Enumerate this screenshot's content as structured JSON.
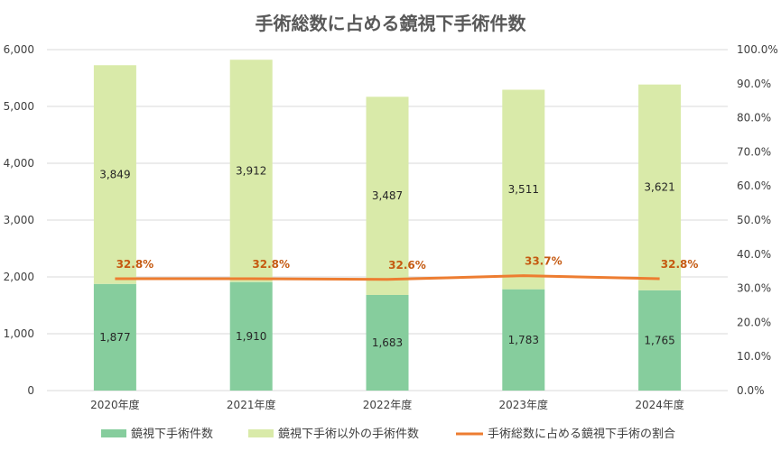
{
  "chart_data": {
    "type": "bar",
    "title": "手術総数に占める鏡視下手術件数",
    "categories": [
      "2020年度",
      "2021年度",
      "2022年度",
      "2023年度",
      "2024年度"
    ],
    "series": [
      {
        "name": "鏡視下手術件数",
        "kind": "stacked-bar",
        "axis": "left",
        "color": "#86cd9d",
        "values": [
          1877,
          1910,
          1683,
          1783,
          1765
        ],
        "labels": [
          "1,877",
          "1,910",
          "1,683",
          "1,783",
          "1,765"
        ]
      },
      {
        "name": "鏡視下手術以外の手術件数",
        "kind": "stacked-bar",
        "axis": "left",
        "color": "#d9eaa9",
        "values": [
          3849,
          3912,
          3487,
          3511,
          3621
        ],
        "labels": [
          "3,849",
          "3,912",
          "3,487",
          "3,511",
          "3,621"
        ]
      },
      {
        "name": "手術総数に占める鏡視下手術の割合",
        "kind": "line",
        "axis": "right",
        "color": "#ed7d31",
        "values": [
          32.8,
          32.8,
          32.6,
          33.7,
          32.8
        ],
        "labels": [
          "32.8%",
          "32.8%",
          "32.6%",
          "33.7%",
          "32.8%"
        ]
      }
    ],
    "ylim": [
      0,
      6000
    ],
    "y_ticks": [
      "0",
      "1,000",
      "2,000",
      "3,000",
      "4,000",
      "5,000",
      "6,000"
    ],
    "y2lim": [
      0,
      100
    ],
    "y2_ticks": [
      "0.0%",
      "10.0%",
      "20.0%",
      "30.0%",
      "40.0%",
      "50.0%",
      "60.0%",
      "70.0%",
      "80.0%",
      "90.0%",
      "100.0%"
    ],
    "grid": true,
    "legend": "bottom"
  }
}
